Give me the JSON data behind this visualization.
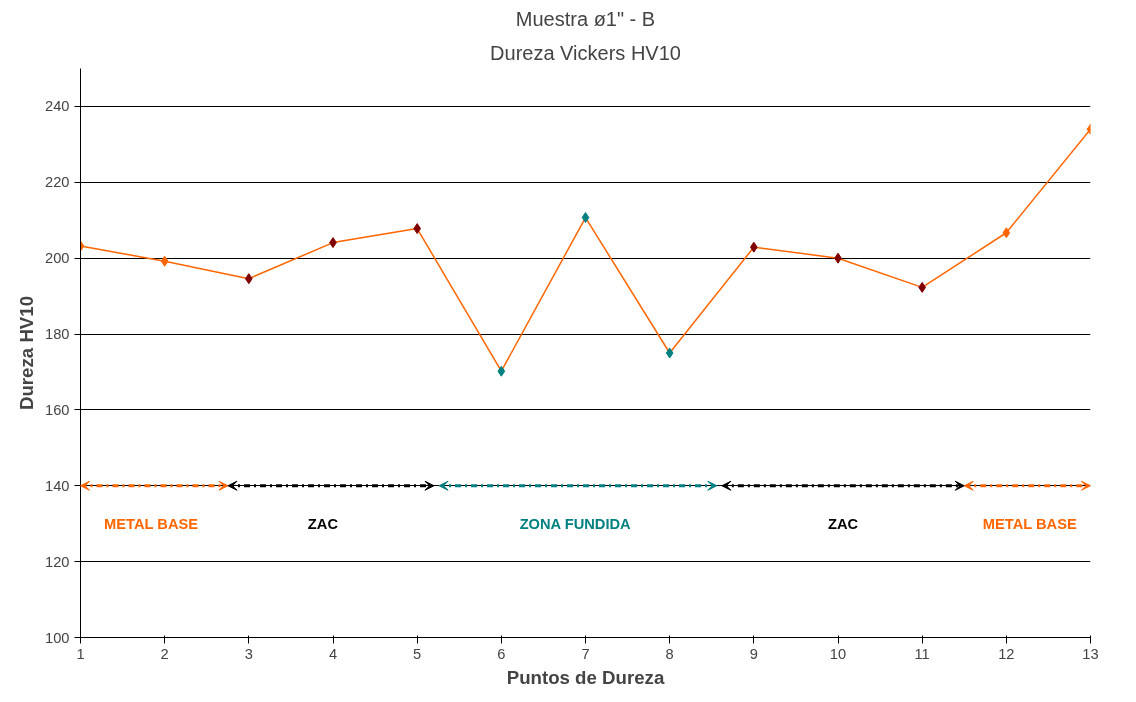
{
  "chart_data": {
    "type": "line",
    "title": "Muestra ø1\" - B",
    "subtitle": "Dureza Vickers HV10",
    "xlabel": "Puntos de Dureza",
    "ylabel": "Dureza HV10",
    "x": [
      1,
      2,
      3,
      4,
      5,
      6,
      7,
      8,
      9,
      10,
      11,
      12,
      13
    ],
    "series": [
      {
        "color": "#ff6600",
        "colors": [
          "#ff6600",
          "#ff6600",
          "#800000",
          "#800000",
          "#800000",
          "#008080",
          "#008080",
          "#008080",
          "#800000",
          "#800000",
          "#800000",
          "#ff6600",
          "#ff6600"
        ],
        "values": [
          203.2,
          199.2,
          194.6,
          204.1,
          207.8,
          170.2,
          210.7,
          175.0,
          202.9,
          200.0,
          192.3,
          206.7,
          234.0
        ]
      }
    ],
    "xlim": [
      1,
      13
    ],
    "xticks": [
      1,
      2,
      3,
      4,
      5,
      6,
      7,
      8,
      9,
      10,
      11,
      12,
      13
    ],
    "ylim": [
      100,
      250
    ],
    "yticks": [
      100,
      120,
      140,
      160,
      180,
      200,
      220,
      240
    ],
    "grid": "y",
    "marker": "diamond",
    "line_style": "solid",
    "annotations": [
      "METAL BASE",
      "ZAC",
      "ZONA FUNDIDA",
      "ZAC",
      "METAL BASE"
    ]
  }
}
